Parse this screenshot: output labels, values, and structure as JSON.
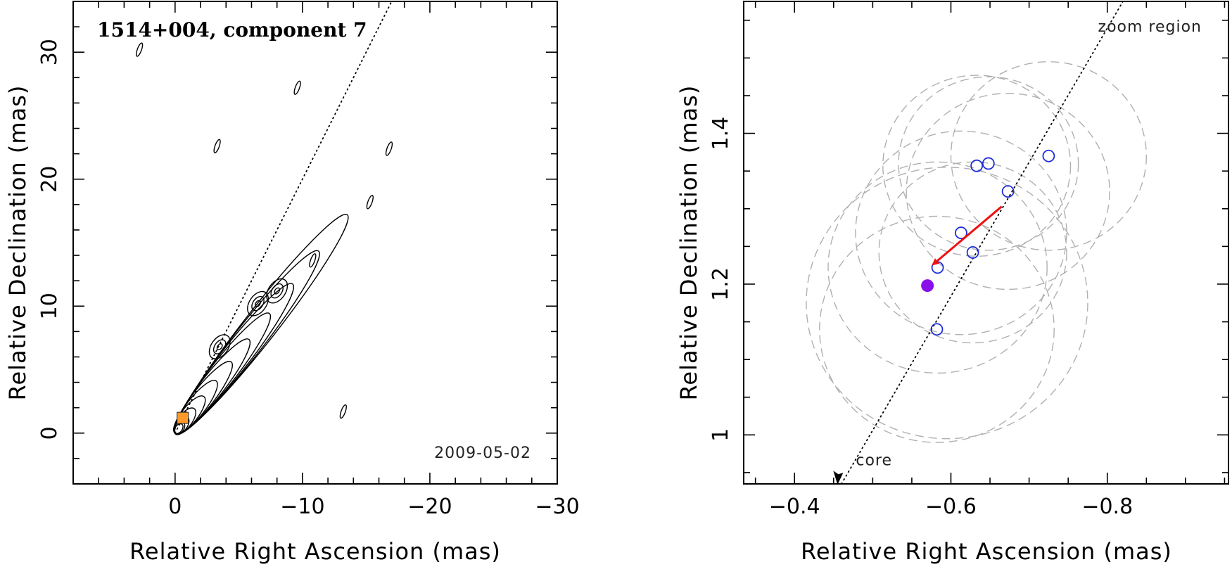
{
  "chart_data": [
    {
      "type": "contour",
      "panel": "left",
      "title": "1514+004, component 7",
      "epoch": "2009-05-02",
      "xlabel": "Relative Right Ascension (mas)",
      "ylabel": "Relative Declination (mas)",
      "xlim": [
        8,
        -30
      ],
      "ylim": [
        -4,
        34
      ],
      "x_ticks": [
        0,
        -10,
        -20,
        -30
      ],
      "y_ticks": [
        0,
        10,
        20,
        30
      ],
      "ridge_line": {
        "x": [
          0,
          -17
        ],
        "y": [
          0,
          34
        ]
      },
      "component_marker": {
        "x": -0.6,
        "y": 1.2
      },
      "jet_knots": [
        {
          "x": 0.0,
          "y": 0.0
        },
        {
          "x": -3.5,
          "y": 6.8
        },
        {
          "x": -6.5,
          "y": 10.2
        },
        {
          "x": -8.0,
          "y": 11.2
        }
      ],
      "isolated_features": [
        {
          "x": 2.8,
          "y": 30.2
        },
        {
          "x": -9.6,
          "y": 27.2
        },
        {
          "x": -3.3,
          "y": 22.6
        },
        {
          "x": -16.8,
          "y": 22.4
        },
        {
          "x": -15.3,
          "y": 18.2
        },
        {
          "x": -10.8,
          "y": 13.6
        },
        {
          "x": -13.2,
          "y": 1.7
        }
      ],
      "contour_levels": 12
    },
    {
      "type": "scatter",
      "panel": "right",
      "annotation": "zoom region",
      "xlabel": "Relative Right Ascension (mas)",
      "ylabel": "Relative Declination (mas)",
      "xlim": [
        -0.335,
        -0.955
      ],
      "ylim": [
        0.935,
        1.575
      ],
      "x_ticks": [
        -0.4,
        -0.6,
        -0.8
      ],
      "x_tick_labels": [
        "−0.4",
        "−0.6",
        "−0.8"
      ],
      "y_ticks": [
        1.0,
        1.2,
        1.4
      ],
      "y_tick_labels": [
        "1",
        "1.2",
        "1.4"
      ],
      "ridge_line": {
        "x": [
          -0.46,
          -0.82
        ],
        "y": [
          0.935,
          1.575
        ]
      },
      "core_label": "core",
      "core_arrow": {
        "x": -0.455,
        "y": 0.945
      },
      "positions": [
        {
          "x": -0.633,
          "y": 1.357
        },
        {
          "x": -0.648,
          "y": 1.36
        },
        {
          "x": -0.725,
          "y": 1.37
        },
        {
          "x": -0.673,
          "y": 1.323
        },
        {
          "x": -0.613,
          "y": 1.268
        },
        {
          "x": -0.628,
          "y": 1.242
        },
        {
          "x": -0.583,
          "y": 1.222
        },
        {
          "x": -0.582,
          "y": 1.14
        }
      ],
      "uncertainty_rings": [
        {
          "x": -0.633,
          "y": 1.357,
          "r": 0.12
        },
        {
          "x": -0.648,
          "y": 1.36,
          "r": 0.115
        },
        {
          "x": -0.725,
          "y": 1.37,
          "r": 0.125
        },
        {
          "x": -0.673,
          "y": 1.323,
          "r": 0.13
        },
        {
          "x": -0.613,
          "y": 1.268,
          "r": 0.135
        },
        {
          "x": -0.628,
          "y": 1.242,
          "r": 0.12
        },
        {
          "x": -0.583,
          "y": 1.222,
          "r": 0.14
        },
        {
          "x": -0.582,
          "y": 1.14,
          "r": 0.15
        },
        {
          "x": -0.595,
          "y": 1.175,
          "r": 0.18
        }
      ],
      "current_position": {
        "x": -0.57,
        "y": 1.198,
        "color": "#8a10ea"
      },
      "motion_vector": {
        "x0": -0.665,
        "y0": 1.303,
        "x1": -0.577,
        "y1": 1.226,
        "color": "#ee1111"
      }
    }
  ],
  "colors": {
    "open_marker": "#1f2fd6",
    "ring": "#b0b0b0",
    "frame": "#000000"
  }
}
